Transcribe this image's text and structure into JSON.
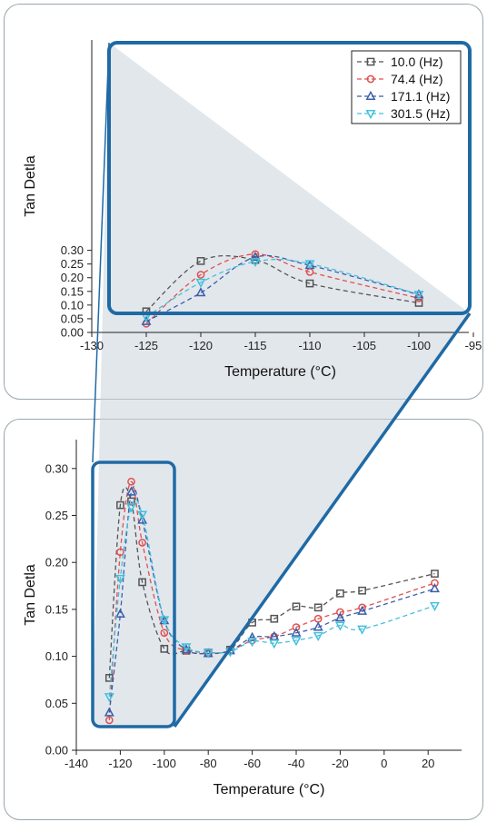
{
  "chart_data": [
    {
      "type": "line",
      "panel": "inset",
      "xlabel": "Temperature (°C)",
      "ylabel": "Tan Detla",
      "xlim": [
        -130,
        -95
      ],
      "ylim": [
        0.0,
        0.3
      ],
      "xticks": [
        "-130",
        "-125",
        "-120",
        "-115",
        "-110",
        "-105",
        "-100",
        "-95"
      ],
      "yticks": [
        "0.00",
        "0.05",
        "0.10",
        "0.15",
        "0.20",
        "0.25",
        "0.30"
      ],
      "legend": "top-right",
      "series": [
        {
          "name": "10.0 (Hz)",
          "color": "#555555",
          "marker": "square",
          "x": [
            -125,
            -120,
            -115,
            -110,
            -100
          ],
          "y": [
            0.077,
            0.261,
            0.265,
            0.179,
            0.108
          ]
        },
        {
          "name": "74.4 (Hz)",
          "color": "#e05050",
          "marker": "circle",
          "x": [
            -125,
            -120,
            -115,
            -110,
            -100
          ],
          "y": [
            0.032,
            0.211,
            0.286,
            0.221,
            0.125
          ]
        },
        {
          "name": "171.1 (Hz)",
          "color": "#3a5faa",
          "marker": "triangle-up",
          "x": [
            -125,
            -120,
            -115,
            -110,
            -100
          ],
          "y": [
            0.04,
            0.145,
            0.275,
            0.245,
            0.138
          ]
        },
        {
          "name": "301.5 (Hz)",
          "color": "#44c0dd",
          "marker": "triangle-down",
          "x": [
            -125,
            -120,
            -115,
            -110,
            -100
          ],
          "y": [
            0.057,
            0.183,
            0.259,
            0.251,
            0.139
          ]
        }
      ]
    },
    {
      "type": "line",
      "panel": "full",
      "xlabel": "Temperature (°C)",
      "ylabel": "Tan Detla",
      "xlim": [
        -140,
        35
      ],
      "ylim": [
        0.0,
        0.33
      ],
      "xticks": [
        "-140",
        "-120",
        "-100",
        "-80",
        "-60",
        "-40",
        "-20",
        "0",
        "20"
      ],
      "yticks": [
        "0.00",
        "0.05",
        "0.10",
        "0.15",
        "0.20",
        "0.25",
        "0.30"
      ],
      "series": [
        {
          "name": "10.0 (Hz)",
          "color": "#555555",
          "marker": "square",
          "x": [
            -125,
            -120,
            -115,
            -110,
            -100,
            -90,
            -80,
            -70,
            -60,
            -50,
            -40,
            -30,
            -20,
            -10,
            23
          ],
          "y": [
            0.077,
            0.261,
            0.265,
            0.179,
            0.108,
            0.106,
            0.104,
            0.107,
            0.136,
            0.14,
            0.153,
            0.152,
            0.167,
            0.17,
            0.188
          ]
        },
        {
          "name": "74.4 (Hz)",
          "color": "#e05050",
          "marker": "circle",
          "x": [
            -125,
            -120,
            -115,
            -110,
            -100,
            -90,
            -80,
            -70,
            -60,
            -50,
            -40,
            -30,
            -20,
            -10,
            23
          ],
          "y": [
            0.032,
            0.211,
            0.286,
            0.221,
            0.125,
            0.106,
            0.103,
            0.106,
            0.117,
            0.121,
            0.131,
            0.14,
            0.147,
            0.152,
            0.178
          ]
        },
        {
          "name": "171.1 (Hz)",
          "color": "#3a5faa",
          "marker": "triangle-up",
          "x": [
            -125,
            -120,
            -115,
            -110,
            -100,
            -90,
            -80,
            -70,
            -60,
            -50,
            -40,
            -30,
            -20,
            -10,
            23
          ],
          "y": [
            0.04,
            0.145,
            0.275,
            0.245,
            0.138,
            0.107,
            0.103,
            0.106,
            0.12,
            0.121,
            0.125,
            0.131,
            0.141,
            0.148,
            0.172
          ]
        },
        {
          "name": "301.5 (Hz)",
          "color": "#44c0dd",
          "marker": "triangle-down",
          "x": [
            -125,
            -120,
            -115,
            -110,
            -100,
            -90,
            -80,
            -70,
            -60,
            -50,
            -40,
            -30,
            -20,
            -10,
            23
          ],
          "y": [
            0.057,
            0.183,
            0.259,
            0.251,
            0.139,
            0.11,
            0.104,
            0.105,
            0.116,
            0.114,
            0.117,
            0.122,
            0.133,
            0.129,
            0.154
          ]
        }
      ]
    }
  ],
  "colors": {
    "zoom_box": "#1f6aa5",
    "zoom_fill": "#cbd3dc",
    "panel_border": "#9aa6ad"
  }
}
